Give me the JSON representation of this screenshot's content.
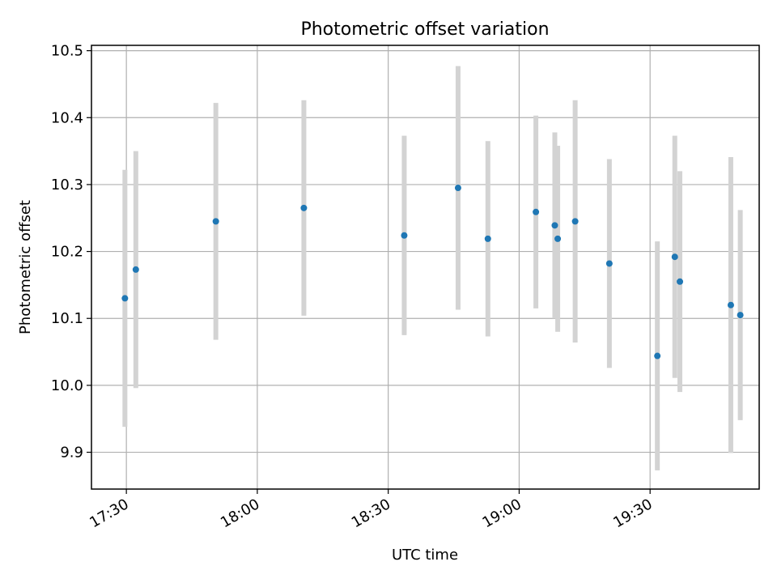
{
  "chart_data": {
    "type": "scatter",
    "title": "Photometric offset variation",
    "xlabel": "UTC time",
    "ylabel": "Photometric offset",
    "x_tick_labels": [
      "17:30",
      "18:00",
      "18:30",
      "19:00",
      "19:30"
    ],
    "x_tick_times": [
      "17:30",
      "18:00",
      "18:30",
      "19:00",
      "19:30"
    ],
    "y_tick_labels": [
      "9.9",
      "10.0",
      "10.1",
      "10.2",
      "10.3",
      "10.4",
      "10.5"
    ],
    "y_ticks": [
      9.9,
      10.0,
      10.1,
      10.2,
      10.3,
      10.4,
      10.5
    ],
    "xlim": [
      "17:22",
      "19:55"
    ],
    "ylim": [
      9.845,
      10.508
    ],
    "grid": true,
    "colors": {
      "point": "#1f77b4",
      "errorbar": "#d3d3d3",
      "grid": "#b0b0b0"
    },
    "points": [
      {
        "x": "17:29:40",
        "y": 10.13,
        "yerr": 0.192
      },
      {
        "x": "17:32:10",
        "y": 10.173,
        "yerr": 0.177
      },
      {
        "x": "17:50:30",
        "y": 10.245,
        "yerr": 0.177
      },
      {
        "x": "18:10:40",
        "y": 10.265,
        "yerr": 0.161
      },
      {
        "x": "18:33:40",
        "y": 10.224,
        "yerr": 0.149
      },
      {
        "x": "18:46:00",
        "y": 10.295,
        "yerr": 0.182
      },
      {
        "x": "18:52:50",
        "y": 10.219,
        "yerr": 0.146
      },
      {
        "x": "19:03:50",
        "y": 10.259,
        "yerr": 0.144
      },
      {
        "x": "19:08:10",
        "y": 10.239,
        "yerr": 0.139
      },
      {
        "x": "19:08:50",
        "y": 10.219,
        "yerr": 0.139
      },
      {
        "x": "19:12:50",
        "y": 10.245,
        "yerr": 0.181
      },
      {
        "x": "19:20:40",
        "y": 10.182,
        "yerr": 0.156
      },
      {
        "x": "19:31:40",
        "y": 10.044,
        "yerr": 0.171
      },
      {
        "x": "19:35:40",
        "y": 10.192,
        "yerr": 0.181
      },
      {
        "x": "19:36:50",
        "y": 10.155,
        "yerr": 0.165
      },
      {
        "x": "19:48:30",
        "y": 10.12,
        "yerr": 0.221
      },
      {
        "x": "19:50:40",
        "y": 10.105,
        "yerr": 0.157
      }
    ]
  }
}
